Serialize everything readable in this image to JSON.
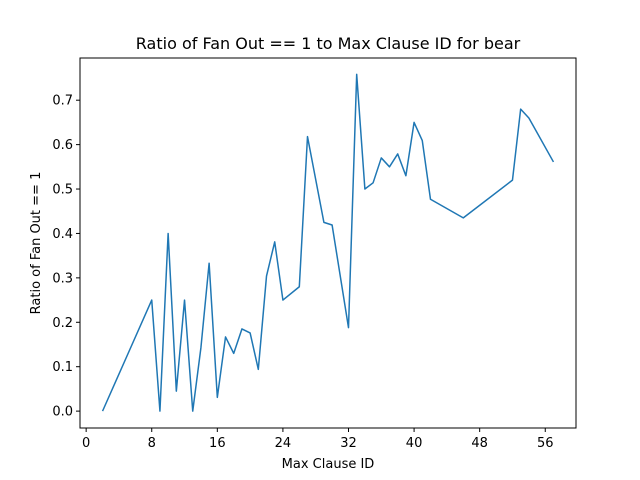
{
  "chart_data": {
    "type": "line",
    "title": "Ratio of Fan Out == 1 to Max Clause ID for bear",
    "xlabel": "Max Clause ID",
    "ylabel": "Ratio of Fan Out == 1",
    "xlim": [
      -0.75,
      59.75
    ],
    "ylim": [
      -0.038,
      0.795
    ],
    "xticks": [
      0,
      8,
      16,
      24,
      32,
      40,
      48,
      56
    ],
    "yticks": [
      0.0,
      0.1,
      0.2,
      0.3,
      0.4,
      0.5,
      0.6,
      0.7
    ],
    "ytick_labels": [
      "0.0",
      "0.1",
      "0.2",
      "0.3",
      "0.4",
      "0.5",
      "0.6",
      "0.7"
    ],
    "grid": false,
    "color": "#1f77b4",
    "series": [
      {
        "x": [
          2,
          8,
          9,
          10,
          11,
          12,
          13,
          14,
          15,
          16,
          17,
          18,
          19,
          20,
          21,
          22,
          23,
          24,
          26,
          27,
          29,
          30,
          32,
          33,
          34,
          35,
          36,
          37,
          38,
          39,
          40,
          41,
          42,
          46,
          52,
          53,
          54,
          57
        ],
        "values": [
          0.0,
          0.25,
          0.0,
          0.4,
          0.045,
          0.25,
          0.0,
          0.143,
          0.333,
          0.031,
          0.167,
          0.13,
          0.185,
          0.176,
          0.094,
          0.304,
          0.381,
          0.25,
          0.28,
          0.618,
          0.425,
          0.419,
          0.188,
          0.758,
          0.5,
          0.514,
          0.57,
          0.55,
          0.579,
          0.53,
          0.65,
          0.609,
          0.477,
          0.435,
          0.52,
          0.68,
          0.66,
          0.561
        ]
      }
    ]
  }
}
